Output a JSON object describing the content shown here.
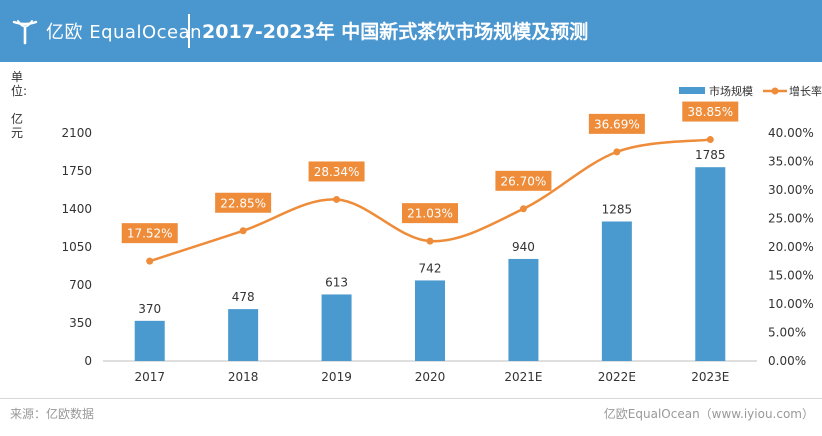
{
  "header": {
    "brand": "亿欧 EqualOcean",
    "title": "2017-2023年 中国新式茶饮市场规模及预测",
    "bg_color": "#4a96cf"
  },
  "unit_label": "单位:",
  "unit_value": "亿元",
  "footer": {
    "source": "来源：亿欧数据",
    "site": "亿欧EqualOcean（www.iyiou.com）"
  },
  "chart_data": {
    "type": "bar",
    "categories": [
      "2017",
      "2018",
      "2019",
      "2020",
      "2021E",
      "2022E",
      "2023E"
    ],
    "series": [
      {
        "name": "市场规模",
        "type": "bar",
        "axis": "left",
        "color": "#4a9ad0",
        "values": [
          370,
          478,
          613,
          742,
          940,
          1285,
          1785
        ],
        "labels": [
          "370",
          "478",
          "613",
          "742",
          "940",
          "1285",
          "1785"
        ]
      },
      {
        "name": "增长率",
        "type": "line",
        "axis": "right",
        "color": "#ee8c3a",
        "values": [
          17.52,
          22.85,
          28.34,
          21.03,
          26.7,
          36.69,
          38.85
        ],
        "labels": [
          "17.52%",
          "22.85%",
          "28.34%",
          "21.03%",
          "26.70%",
          "36.69%",
          "38.85%"
        ]
      }
    ],
    "y_left": {
      "ylim": [
        0,
        2100
      ],
      "ticks": [
        0,
        350,
        700,
        1050,
        1400,
        1750,
        2100
      ],
      "tick_labels": [
        "0",
        "350",
        "700",
        "1050",
        "1400",
        "1750",
        "2100"
      ]
    },
    "y_right": {
      "ylim": [
        0,
        40
      ],
      "ticks": [
        0,
        5,
        10,
        15,
        20,
        25,
        30,
        35,
        40
      ],
      "tick_labels": [
        "0.00%",
        "5.00%",
        "10.00%",
        "15.00%",
        "20.00%",
        "25.00%",
        "30.00%",
        "35.00%",
        "40.00%"
      ]
    },
    "legend": {
      "position": "top-right",
      "entries": [
        "市场规模",
        "增长率"
      ]
    },
    "grid": false
  }
}
